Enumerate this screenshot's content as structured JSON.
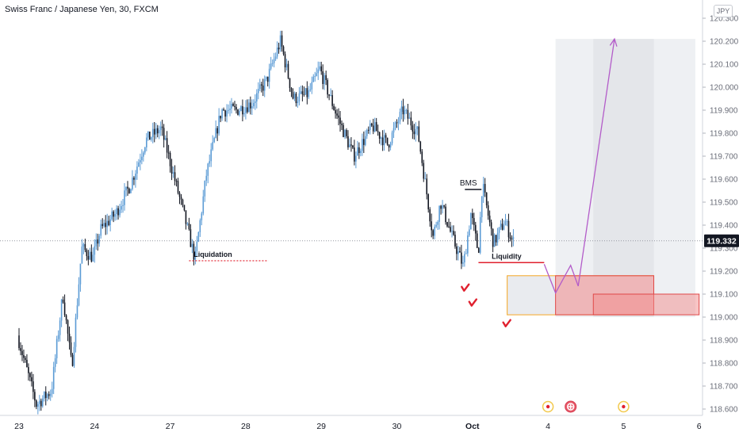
{
  "header": {
    "symbol_title": "Swiss Franc / Japanese Yen, 30, FXCM",
    "currency_badge": "JPY"
  },
  "colors": {
    "candle_up": "#5b9bd5",
    "candle_down": "#131722",
    "purple": "#b35cc9",
    "red": "#e0202e",
    "orange": "#f5a623",
    "zone_gray": "#e4e6ea",
    "zone_red": "#f28b8b"
  },
  "chart_data": {
    "type": "candlestick",
    "title": "Swiss Franc / Japanese Yen, 30, FXCM",
    "y_axis": {
      "range": [
        118.56,
        120.35
      ],
      "ticks": [
        "120.300",
        "120.200",
        "120.100",
        "120.000",
        "119.900",
        "119.800",
        "119.700",
        "119.600",
        "119.500",
        "119.400",
        "119.300",
        "119.200",
        "119.100",
        "119.000",
        "118.900",
        "118.800",
        "118.700",
        "118.600"
      ],
      "tick_values": [
        120.3,
        120.2,
        120.1,
        120.0,
        119.9,
        119.8,
        119.7,
        119.6,
        119.5,
        119.4,
        119.3,
        119.2,
        119.1,
        119.0,
        118.9,
        118.8,
        118.7,
        118.6
      ],
      "position": "right"
    },
    "x_axis": {
      "labels": [
        "23",
        "24",
        "27",
        "28",
        "29",
        "30",
        "Oct",
        "4",
        "5",
        "6"
      ],
      "label_positions": [
        0,
        1,
        2,
        3,
        4,
        5,
        6,
        7,
        8,
        9
      ]
    },
    "current_price": {
      "label": "119.332",
      "value": 119.332
    },
    "price_path": [
      [
        0.0,
        118.92
      ],
      [
        0.25,
        118.62
      ],
      [
        0.45,
        118.68
      ],
      [
        0.6,
        119.1
      ],
      [
        0.72,
        118.78
      ],
      [
        0.85,
        119.3
      ],
      [
        1.0,
        119.26
      ],
      [
        1.1,
        119.38
      ],
      [
        1.3,
        119.45
      ],
      [
        1.5,
        119.58
      ],
      [
        1.7,
        119.77
      ],
      [
        1.9,
        119.82
      ],
      [
        2.0,
        119.7
      ],
      [
        2.2,
        119.45
      ],
      [
        2.35,
        119.25
      ],
      [
        2.5,
        119.62
      ],
      [
        2.7,
        119.9
      ],
      [
        2.9,
        119.9
      ],
      [
        3.1,
        119.93
      ],
      [
        3.3,
        120.03
      ],
      [
        3.48,
        120.2
      ],
      [
        3.65,
        119.95
      ],
      [
        3.85,
        119.97
      ],
      [
        4.0,
        120.08
      ],
      [
        4.2,
        119.9
      ],
      [
        4.45,
        119.7
      ],
      [
        4.7,
        119.83
      ],
      [
        4.9,
        119.75
      ],
      [
        5.1,
        119.9
      ],
      [
        5.3,
        119.8
      ],
      [
        5.5,
        119.35
      ],
      [
        5.6,
        119.5
      ],
      [
        5.75,
        119.35
      ],
      [
        5.9,
        119.22
      ],
      [
        6.0,
        119.45
      ],
      [
        6.1,
        119.28
      ],
      [
        6.15,
        119.58
      ],
      [
        6.3,
        119.32
      ],
      [
        6.45,
        119.42
      ],
      [
        6.55,
        119.33
      ]
    ],
    "annotations": [
      {
        "text": "Liquidation",
        "type": "dotted-level",
        "x_start": 2.25,
        "x_end": 3.3,
        "y": 119.245,
        "color": "red"
      },
      {
        "text": "BMS",
        "type": "level",
        "x_start": 5.9,
        "x_end": 6.12,
        "y": 119.555,
        "color": "black"
      },
      {
        "text": "Liquidity",
        "type": "level",
        "x_start": 6.08,
        "x_end": 6.95,
        "y": 119.237,
        "color": "red"
      }
    ],
    "markers": [
      {
        "type": "checkmark",
        "x": 5.9,
        "y": 119.125,
        "color": "red"
      },
      {
        "type": "checkmark",
        "x": 6.0,
        "y": 119.06,
        "color": "red"
      },
      {
        "type": "checkmark",
        "x": 6.45,
        "y": 118.97,
        "color": "red"
      }
    ],
    "zones": [
      {
        "name": "target-zone",
        "x_start": 7.1,
        "x_end": 8.95,
        "y_top": 120.21,
        "y_bottom": 119.0,
        "color": "gray"
      },
      {
        "name": "target-zone-dark",
        "x_start": 7.6,
        "x_end": 8.4,
        "y_top": 120.21,
        "y_bottom": 119.0,
        "color": "gray"
      },
      {
        "name": "entry-zone",
        "x_start": 6.46,
        "x_end": 8.4,
        "y_top": 119.18,
        "y_bottom": 119.01,
        "color": "orange"
      },
      {
        "name": "stop-zone",
        "x_start": 7.1,
        "x_end": 8.4,
        "y_top": 119.18,
        "y_bottom": 119.01,
        "color": "red"
      },
      {
        "name": "stop-zone-extended",
        "x_start": 7.6,
        "x_end": 9.0,
        "y_top": 119.1,
        "y_bottom": 119.01,
        "color": "red"
      }
    ],
    "projection_path": [
      [
        6.95,
        119.23
      ],
      [
        7.1,
        119.105
      ],
      [
        7.3,
        119.225
      ],
      [
        7.4,
        119.135
      ],
      [
        7.88,
        120.21
      ]
    ],
    "event_icons": [
      {
        "x": 7.0,
        "kind": "yellow"
      },
      {
        "x": 7.3,
        "kind": "red"
      },
      {
        "x": 8.0,
        "kind": "yellow"
      }
    ]
  }
}
